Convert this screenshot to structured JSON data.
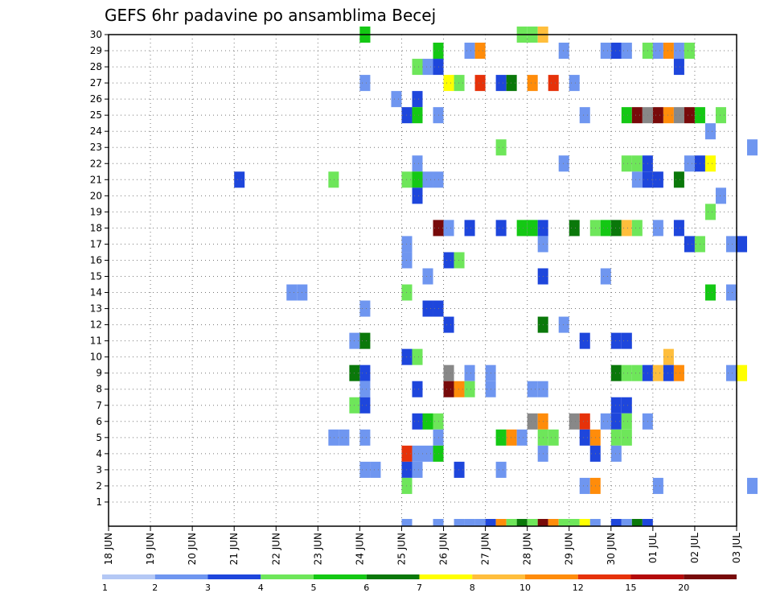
{
  "chart_data": {
    "type": "heatmap",
    "title": "GEFS 6hr padavine po ansamblima Becej",
    "x_tick_labels": [
      "18 JUN",
      "19 JUN",
      "20 JUN",
      "21 JUN",
      "22 JUN",
      "23 JUN",
      "24 JUN",
      "25 JUN",
      "26 JUN",
      "27 JUN",
      "28 JUN",
      "29 JUN",
      "30 JUN",
      "01 JUL",
      "02 JUL",
      "03 JUL"
    ],
    "y_tick_labels": [
      "1",
      "2",
      "3",
      "4",
      "5",
      "6",
      "7",
      "8",
      "9",
      "10",
      "11",
      "12",
      "13",
      "14",
      "15",
      "16",
      "17",
      "18",
      "19",
      "20",
      "21",
      "22",
      "23",
      "24",
      "25",
      "26",
      "27",
      "28",
      "29",
      "30"
    ],
    "ylim": [
      0,
      30
    ],
    "grid": true,
    "colorbar": {
      "labels": [
        "1",
        "2",
        "3",
        "4",
        "5",
        "6",
        "7",
        "8",
        "10",
        "12",
        "15",
        "20"
      ],
      "colors": [
        "#b4c8f5",
        "#6f96f0",
        "#1e46dc",
        "#6ee65a",
        "#14c814",
        "#0a780a",
        "#ffff00",
        "#ffbe3c",
        "#ff8c0a",
        "#e6320a",
        "#b40a0a",
        "#780a0a"
      ]
    },
    "cells": [
      [
        6.0,
        30,
        4
      ],
      [
        6.0,
        30,
        4
      ],
      [
        9.75,
        30,
        3
      ],
      [
        10.0,
        30,
        3
      ],
      [
        10.25,
        30,
        7
      ],
      [
        7.75,
        29,
        4
      ],
      [
        8.5,
        29,
        1
      ],
      [
        8.75,
        29,
        8
      ],
      [
        10.75,
        29,
        1
      ],
      [
        11.75,
        29,
        1
      ],
      [
        12.0,
        29,
        2
      ],
      [
        12.25,
        29,
        1
      ],
      [
        12.75,
        29,
        3
      ],
      [
        13.0,
        29,
        1
      ],
      [
        13.25,
        29,
        8
      ],
      [
        13.5,
        29,
        1
      ],
      [
        13.75,
        29,
        3
      ],
      [
        7.25,
        28,
        3
      ],
      [
        7.5,
        28,
        1
      ],
      [
        7.75,
        28,
        2
      ],
      [
        13.5,
        28,
        2
      ],
      [
        6.0,
        27,
        1
      ],
      [
        8.0,
        27,
        6
      ],
      [
        8.25,
        27,
        3
      ],
      [
        8.75,
        27,
        9
      ],
      [
        9.25,
        27,
        2
      ],
      [
        9.5,
        27,
        5
      ],
      [
        10.0,
        27,
        8
      ],
      [
        10.5,
        27,
        9
      ],
      [
        11.0,
        27,
        1
      ],
      [
        6.75,
        26,
        1
      ],
      [
        7.25,
        26,
        2
      ],
      [
        7.0,
        25,
        2
      ],
      [
        7.25,
        25,
        4
      ],
      [
        7.75,
        25,
        1
      ],
      [
        11.25,
        25,
        1
      ],
      [
        12.25,
        25,
        4
      ],
      [
        12.5,
        25,
        11
      ],
      [
        12.75,
        25,
        12
      ],
      [
        13.0,
        25,
        11
      ],
      [
        13.25,
        25,
        8
      ],
      [
        13.5,
        25,
        12
      ],
      [
        13.75,
        25,
        11
      ],
      [
        14.0,
        25,
        4
      ],
      [
        14.5,
        25,
        3
      ],
      [
        14.25,
        24,
        1
      ],
      [
        9.25,
        23,
        3
      ],
      [
        15.25,
        23,
        1
      ],
      [
        7.25,
        22,
        1
      ],
      [
        10.75,
        22,
        1
      ],
      [
        12.25,
        22,
        3
      ],
      [
        12.5,
        22,
        3
      ],
      [
        12.75,
        22,
        2
      ],
      [
        13.75,
        22,
        1
      ],
      [
        14.0,
        22,
        2
      ],
      [
        14.25,
        22,
        6
      ],
      [
        3.0,
        21,
        2
      ],
      [
        5.25,
        21,
        3
      ],
      [
        7.0,
        21,
        3
      ],
      [
        7.25,
        21,
        4
      ],
      [
        7.5,
        21,
        1
      ],
      [
        7.75,
        21,
        1
      ],
      [
        12.5,
        21,
        1
      ],
      [
        12.75,
        21,
        2
      ],
      [
        13.0,
        21,
        2
      ],
      [
        13.5,
        21,
        5
      ],
      [
        7.25,
        20,
        2
      ],
      [
        14.5,
        20,
        1
      ],
      [
        14.25,
        19,
        3
      ],
      [
        7.75,
        18,
        11
      ],
      [
        8.0,
        18,
        1
      ],
      [
        8.5,
        18,
        2
      ],
      [
        9.25,
        18,
        2
      ],
      [
        9.75,
        18,
        4
      ],
      [
        10.0,
        18,
        4
      ],
      [
        10.25,
        18,
        2
      ],
      [
        11.0,
        18,
        5
      ],
      [
        11.5,
        18,
        3
      ],
      [
        11.75,
        18,
        4
      ],
      [
        12.0,
        18,
        5
      ],
      [
        12.25,
        18,
        7
      ],
      [
        12.5,
        18,
        3
      ],
      [
        13.0,
        18,
        1
      ],
      [
        13.5,
        18,
        2
      ],
      [
        7.0,
        17,
        1
      ],
      [
        10.25,
        17,
        1
      ],
      [
        13.75,
        17,
        2
      ],
      [
        14.0,
        17,
        3
      ],
      [
        14.75,
        17,
        1
      ],
      [
        15.0,
        17,
        2
      ],
      [
        7.0,
        16,
        1
      ],
      [
        8.0,
        16,
        2
      ],
      [
        8.25,
        16,
        3
      ],
      [
        7.5,
        15,
        1
      ],
      [
        10.25,
        15,
        2
      ],
      [
        11.75,
        15,
        1
      ],
      [
        4.25,
        14,
        1
      ],
      [
        4.5,
        14,
        1
      ],
      [
        7.0,
        14,
        3
      ],
      [
        14.25,
        14,
        4
      ],
      [
        14.75,
        14,
        1
      ],
      [
        6.0,
        13,
        1
      ],
      [
        7.5,
        13,
        2
      ],
      [
        7.75,
        13,
        2
      ],
      [
        8.0,
        12,
        2
      ],
      [
        10.25,
        12,
        5
      ],
      [
        10.75,
        12,
        1
      ],
      [
        5.75,
        11,
        1
      ],
      [
        6.0,
        11,
        5
      ],
      [
        11.25,
        11,
        2
      ],
      [
        12.0,
        11,
        2
      ],
      [
        12.25,
        11,
        2
      ],
      [
        7.0,
        10,
        2
      ],
      [
        7.25,
        10,
        3
      ],
      [
        13.25,
        10,
        7
      ],
      [
        5.75,
        9,
        5
      ],
      [
        6.0,
        9,
        2
      ],
      [
        8.0,
        9,
        12
      ],
      [
        8.5,
        9,
        1
      ],
      [
        9.0,
        9,
        1
      ],
      [
        12.0,
        9,
        5
      ],
      [
        12.25,
        9,
        3
      ],
      [
        12.5,
        9,
        3
      ],
      [
        12.75,
        9,
        2
      ],
      [
        13.0,
        9,
        7
      ],
      [
        13.25,
        9,
        2
      ],
      [
        13.5,
        9,
        8
      ],
      [
        14.75,
        9,
        1
      ],
      [
        15.0,
        9,
        6
      ],
      [
        6.0,
        8,
        1
      ],
      [
        7.25,
        8,
        2
      ],
      [
        8.0,
        8,
        11
      ],
      [
        8.25,
        8,
        8
      ],
      [
        8.5,
        8,
        3
      ],
      [
        9.0,
        8,
        1
      ],
      [
        10.0,
        8,
        1
      ],
      [
        10.25,
        8,
        1
      ],
      [
        5.75,
        7,
        3
      ],
      [
        6.0,
        7,
        2
      ],
      [
        12.0,
        7,
        2
      ],
      [
        12.25,
        7,
        2
      ],
      [
        7.25,
        6,
        2
      ],
      [
        7.5,
        6,
        4
      ],
      [
        7.75,
        6,
        3
      ],
      [
        10.0,
        6,
        12
      ],
      [
        10.25,
        6,
        8
      ],
      [
        11.0,
        6,
        12
      ],
      [
        11.25,
        6,
        9
      ],
      [
        11.75,
        6,
        1
      ],
      [
        12.0,
        6,
        2
      ],
      [
        12.25,
        6,
        3
      ],
      [
        12.75,
        6,
        1
      ],
      [
        6.0,
        5,
        1
      ],
      [
        7.75,
        5,
        1
      ],
      [
        9.25,
        5,
        4
      ],
      [
        9.5,
        5,
        8
      ],
      [
        9.75,
        5,
        1
      ],
      [
        10.25,
        5,
        3
      ],
      [
        10.5,
        5,
        3
      ],
      [
        11.25,
        5,
        2
      ],
      [
        11.5,
        5,
        8
      ],
      [
        12.0,
        5,
        3
      ],
      [
        12.25,
        5,
        3
      ],
      [
        5.25,
        5,
        1
      ],
      [
        5.5,
        5,
        1
      ],
      [
        7.0,
        4,
        9
      ],
      [
        7.25,
        4,
        1
      ],
      [
        7.5,
        4,
        1
      ],
      [
        7.75,
        4,
        4
      ],
      [
        10.25,
        4,
        1
      ],
      [
        11.5,
        4,
        2
      ],
      [
        12.0,
        4,
        1
      ],
      [
        6.0,
        3,
        1
      ],
      [
        6.25,
        3,
        1
      ],
      [
        7.0,
        3,
        2
      ],
      [
        7.25,
        3,
        1
      ],
      [
        8.25,
        3,
        2
      ],
      [
        9.25,
        3,
        1
      ],
      [
        7.0,
        2,
        3
      ],
      [
        11.25,
        2,
        1
      ],
      [
        11.5,
        2,
        8
      ],
      [
        13.0,
        2,
        1
      ],
      [
        15.25,
        2,
        1
      ]
    ],
    "bottom_row": [
      [
        7.0,
        1
      ],
      [
        7.75,
        1
      ],
      [
        8.25,
        1
      ],
      [
        8.5,
        1
      ],
      [
        8.75,
        1
      ],
      [
        9.0,
        2
      ],
      [
        9.25,
        8
      ],
      [
        9.5,
        3
      ],
      [
        9.75,
        5
      ],
      [
        10.0,
        3
      ],
      [
        10.25,
        11
      ],
      [
        10.5,
        8
      ],
      [
        10.75,
        3
      ],
      [
        11.0,
        3
      ],
      [
        11.25,
        6
      ],
      [
        11.5,
        1
      ],
      [
        12.0,
        2
      ],
      [
        12.25,
        1
      ],
      [
        12.5,
        5
      ],
      [
        12.75,
        2
      ]
    ]
  }
}
